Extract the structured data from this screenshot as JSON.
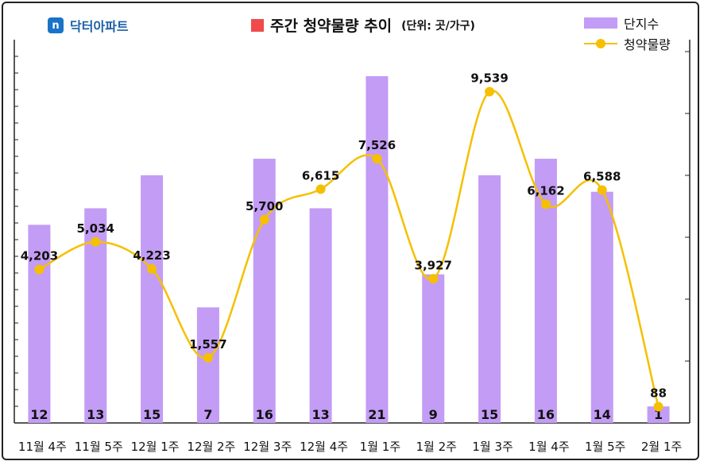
{
  "brand": {
    "name": "닥터아파트",
    "icon": "n"
  },
  "title": {
    "text": "주간 청약물량 추이",
    "unit": "(단위: 곳/가구)",
    "swatch_color": "#f04a4a"
  },
  "legend": {
    "bar_label": "단지수",
    "line_label": "청약물량",
    "placement": "top-right"
  },
  "colors": {
    "bar": "#c39cf5",
    "line": "#f5c000"
  },
  "chart_data": {
    "type": "bar",
    "categories": [
      "11월 4주",
      "11월 5주",
      "12월 1주",
      "12월 2주",
      "12월 3주",
      "12월 4주",
      "1월 1주",
      "1월 2주",
      "1월 3주",
      "1월 4주",
      "1월 5주",
      "2월 1주"
    ],
    "series": [
      {
        "name": "단지수",
        "type": "bar",
        "axis": "left",
        "values": [
          12,
          13,
          15,
          7,
          16,
          13,
          21,
          9,
          15,
          16,
          14,
          1
        ]
      },
      {
        "name": "청약물량",
        "type": "line",
        "axis": "right",
        "values": [
          4203,
          5034,
          4223,
          1557,
          5700,
          6615,
          7526,
          3927,
          9539,
          6162,
          6588,
          88
        ],
        "labels": [
          "4,203",
          "5,034",
          "4,223",
          "1,557",
          "5,700",
          "6,615",
          "7,526",
          "3,927",
          "9,539",
          "6,162",
          "6,588",
          "88"
        ]
      }
    ],
    "bar_ylim": [
      0,
      22
    ],
    "line_ylim": [
      -400,
      11100
    ],
    "grid": false
  }
}
